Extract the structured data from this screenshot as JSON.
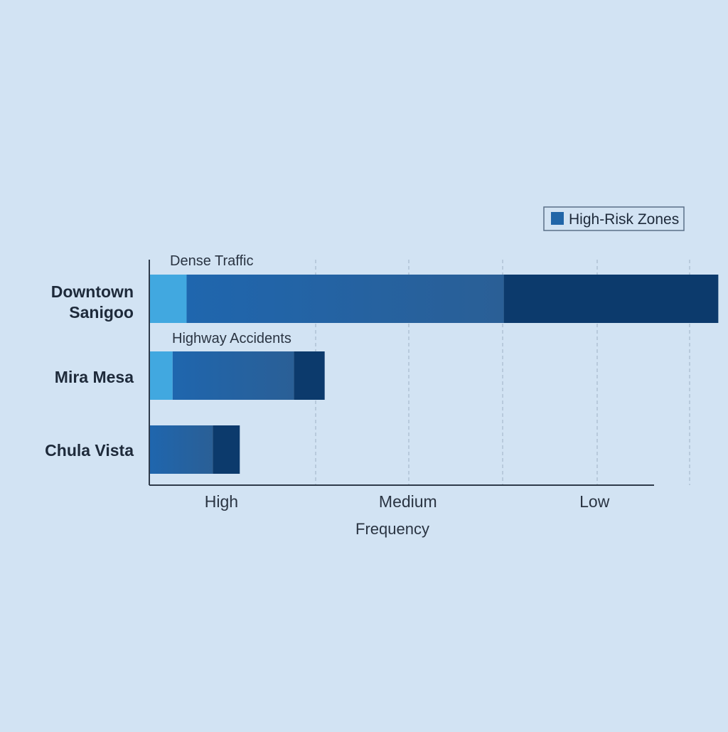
{
  "chart_data": {
    "type": "bar",
    "orientation": "horizontal",
    "stacked": true,
    "categories": [
      "Downtown Sanigoo",
      "Mira Mesa",
      "Chula Vista"
    ],
    "category_lines": [
      [
        "Downtown",
        "Sanigoo"
      ],
      [
        "Mira Mesa"
      ],
      [
        "Chula Vista"
      ]
    ],
    "segments": [
      [
        0.4,
        3.4,
        2.3
      ],
      [
        0.25,
        1.3,
        0.33
      ],
      [
        0,
        0.68,
        0.29
      ]
    ],
    "segment_colors": [
      "#41a8e0",
      "#2166a8",
      "#0c3a6c"
    ],
    "xlabel": "Frequency",
    "xlim": [
      0,
      5.8
    ],
    "x_ticks": [
      {
        "label": "High",
        "value": 0.75
      },
      {
        "label": "Medium",
        "value": 2.75
      },
      {
        "label": "Low",
        "value": 4.75
      }
    ],
    "gridlines": [
      1.78,
      2.78,
      3.79,
      4.8,
      5.79
    ],
    "grid": true,
    "annotations": [
      {
        "text": "Dense Traffic",
        "category": 0
      },
      {
        "text": "Highway Accidents",
        "category": 1
      }
    ],
    "legend": {
      "entries": [
        {
          "label": "High-Risk Zones",
          "color": "#2166a8"
        }
      ],
      "placement": "top-right"
    }
  }
}
